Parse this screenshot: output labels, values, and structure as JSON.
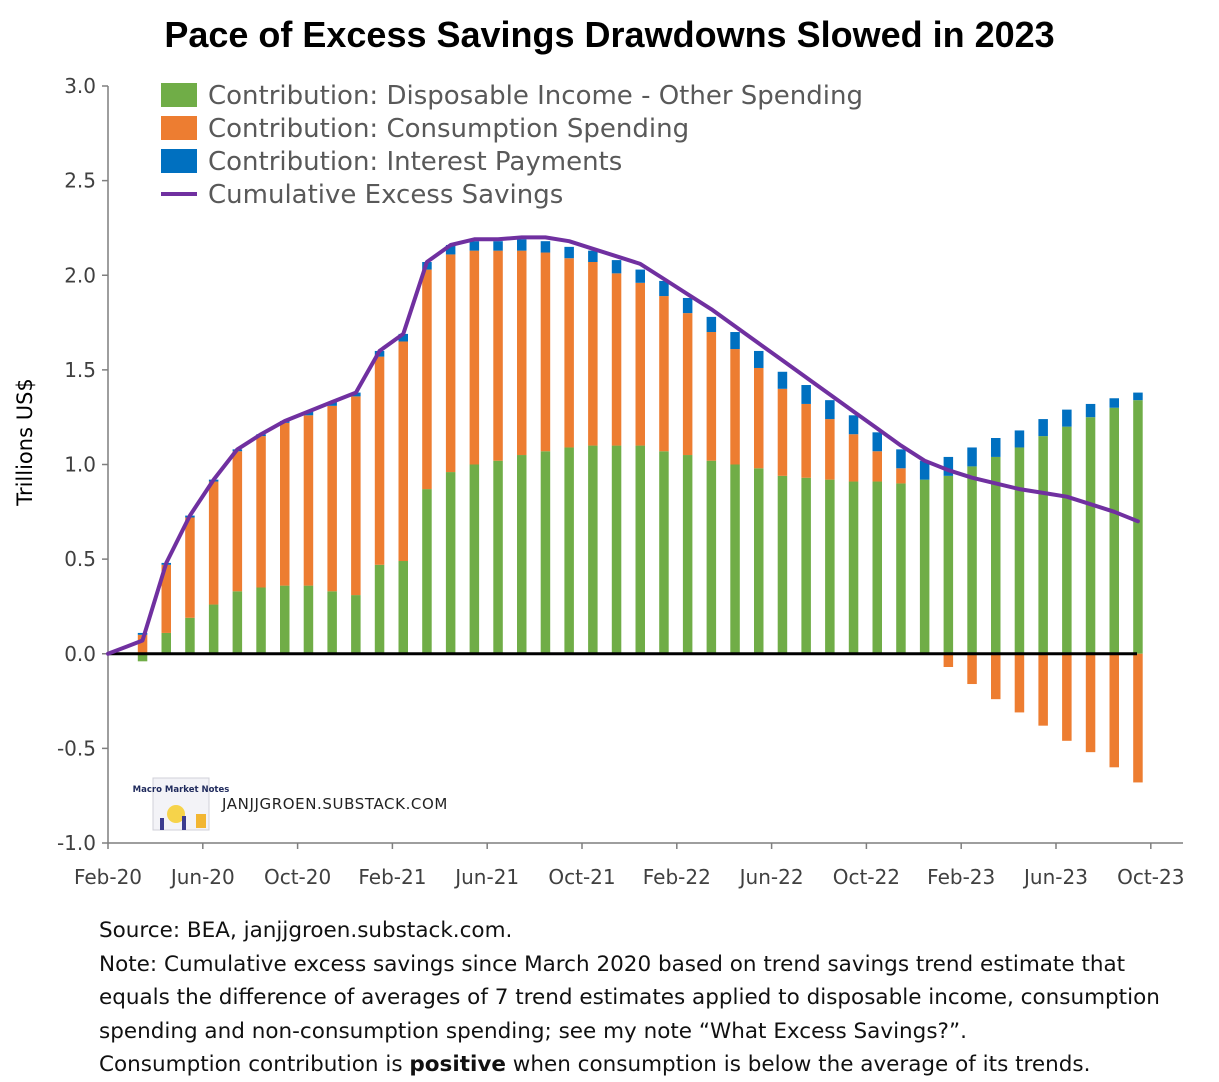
{
  "title": "Pace of Excess Savings Drawdowns Slowed in 2023",
  "watermark": {
    "logo_text": "Macro Market Notes",
    "site": "JANJJGROEN.SUBSTACK.COM"
  },
  "footer": {
    "source": "Source: BEA, janjjgroen.substack.com.",
    "note_lines": [
      "Note: Cumulative excess savings since March 2020 based on trend savings trend estimate that",
      "equals the difference of averages of 7 trend estimates applied to disposable income, consumption",
      "spending and non-consumption spending; see my note “What Excess Savings?”."
    ],
    "last_line_pre": "Consumption contribution is ",
    "last_line_bold": "positive",
    "last_line_post": " when consumption is below the average of its trends."
  },
  "chart_data": {
    "type": "bar",
    "stacked": true,
    "ylabel": "Trillions US$",
    "xlabel": "",
    "ylim": [
      -1.0,
      3.0
    ],
    "yticks": [
      3.0,
      2.5,
      2.0,
      1.5,
      1.0,
      0.5,
      0.0,
      -0.5,
      -1.0
    ],
    "ytick_labels": [
      "3.0",
      "2.5",
      "2.0",
      "1.5",
      "1.0",
      "0.5",
      "0.0",
      "-0.5",
      "-1.0"
    ],
    "xticks": [
      "Feb-20",
      "Jun-20",
      "Oct-20",
      "Feb-21",
      "Jun-21",
      "Oct-21",
      "Feb-22",
      "Jun-22",
      "Oct-22",
      "Feb-23",
      "Jun-23",
      "Oct-23"
    ],
    "grid": false,
    "legend_position": "top-left",
    "categories": [
      "Feb-20",
      "Mar-20",
      "Apr-20",
      "May-20",
      "Jun-20",
      "Jul-20",
      "Aug-20",
      "Sep-20",
      "Oct-20",
      "Nov-20",
      "Dec-20",
      "Jan-21",
      "Feb-21",
      "Mar-21",
      "Apr-21",
      "May-21",
      "Jun-21",
      "Jul-21",
      "Aug-21",
      "Sep-21",
      "Oct-21",
      "Nov-21",
      "Dec-21",
      "Jan-22",
      "Feb-22",
      "Mar-22",
      "Apr-22",
      "May-22",
      "Jun-22",
      "Jul-22",
      "Aug-22",
      "Sep-22",
      "Oct-22",
      "Nov-22",
      "Dec-22",
      "Jan-23",
      "Feb-23",
      "Mar-23",
      "Apr-23",
      "May-23",
      "Jun-23",
      "Jul-23",
      "Aug-23",
      "Sep-23"
    ],
    "series": [
      {
        "name": "Contribution: Disposable Income - Other Spending",
        "kind": "bar",
        "color": "#70ad47",
        "values": [
          0,
          -0.04,
          0.11,
          0.19,
          0.26,
          0.33,
          0.35,
          0.36,
          0.36,
          0.33,
          0.31,
          0.47,
          0.49,
          0.87,
          0.96,
          1.0,
          1.02,
          1.05,
          1.07,
          1.09,
          1.1,
          1.1,
          1.1,
          1.07,
          1.05,
          1.02,
          1.0,
          0.98,
          0.94,
          0.93,
          0.92,
          0.91,
          0.91,
          0.9,
          0.92,
          0.94,
          0.99,
          1.04,
          1.09,
          1.15,
          1.2,
          1.25,
          1.3,
          1.34
        ]
      },
      {
        "name": "Contribution: Consumption Spending",
        "kind": "bar",
        "color": "#ed7d31",
        "values": [
          0,
          0.1,
          0.36,
          0.53,
          0.65,
          0.74,
          0.8,
          0.86,
          0.9,
          0.98,
          1.05,
          1.1,
          1.16,
          1.16,
          1.15,
          1.13,
          1.11,
          1.08,
          1.05,
          1.0,
          0.97,
          0.91,
          0.86,
          0.82,
          0.75,
          0.68,
          0.61,
          0.53,
          0.46,
          0.39,
          0.32,
          0.25,
          0.16,
          0.08,
          0.0,
          -0.07,
          -0.16,
          -0.24,
          -0.31,
          -0.38,
          -0.46,
          -0.52,
          -0.6,
          -0.68
        ]
      },
      {
        "name": "Contribution: Interest Payments",
        "kind": "bar",
        "color": "#0070c0",
        "values": [
          0,
          0.01,
          0.01,
          0.01,
          0.01,
          0.01,
          0.01,
          0.01,
          0.02,
          0.02,
          0.02,
          0.03,
          0.04,
          0.04,
          0.05,
          0.05,
          0.05,
          0.06,
          0.06,
          0.06,
          0.06,
          0.07,
          0.07,
          0.08,
          0.08,
          0.08,
          0.09,
          0.09,
          0.09,
          0.1,
          0.1,
          0.1,
          0.1,
          0.1,
          0.1,
          0.1,
          0.1,
          0.1,
          0.09,
          0.09,
          0.09,
          0.07,
          0.05,
          0.04
        ]
      },
      {
        "name": "Cumulative Excess Savings",
        "kind": "line",
        "color": "#7030a0",
        "values": [
          0,
          0.07,
          0.48,
          0.73,
          0.92,
          1.08,
          1.16,
          1.23,
          1.28,
          1.33,
          1.38,
          1.6,
          1.69,
          2.07,
          2.16,
          2.19,
          2.19,
          2.2,
          2.2,
          2.18,
          2.14,
          2.1,
          2.06,
          1.98,
          1.9,
          1.82,
          1.73,
          1.64,
          1.55,
          1.46,
          1.37,
          1.28,
          1.19,
          1.1,
          1.02,
          0.97,
          0.93,
          0.9,
          0.87,
          0.85,
          0.83,
          0.79,
          0.75,
          0.7
        ]
      }
    ]
  }
}
